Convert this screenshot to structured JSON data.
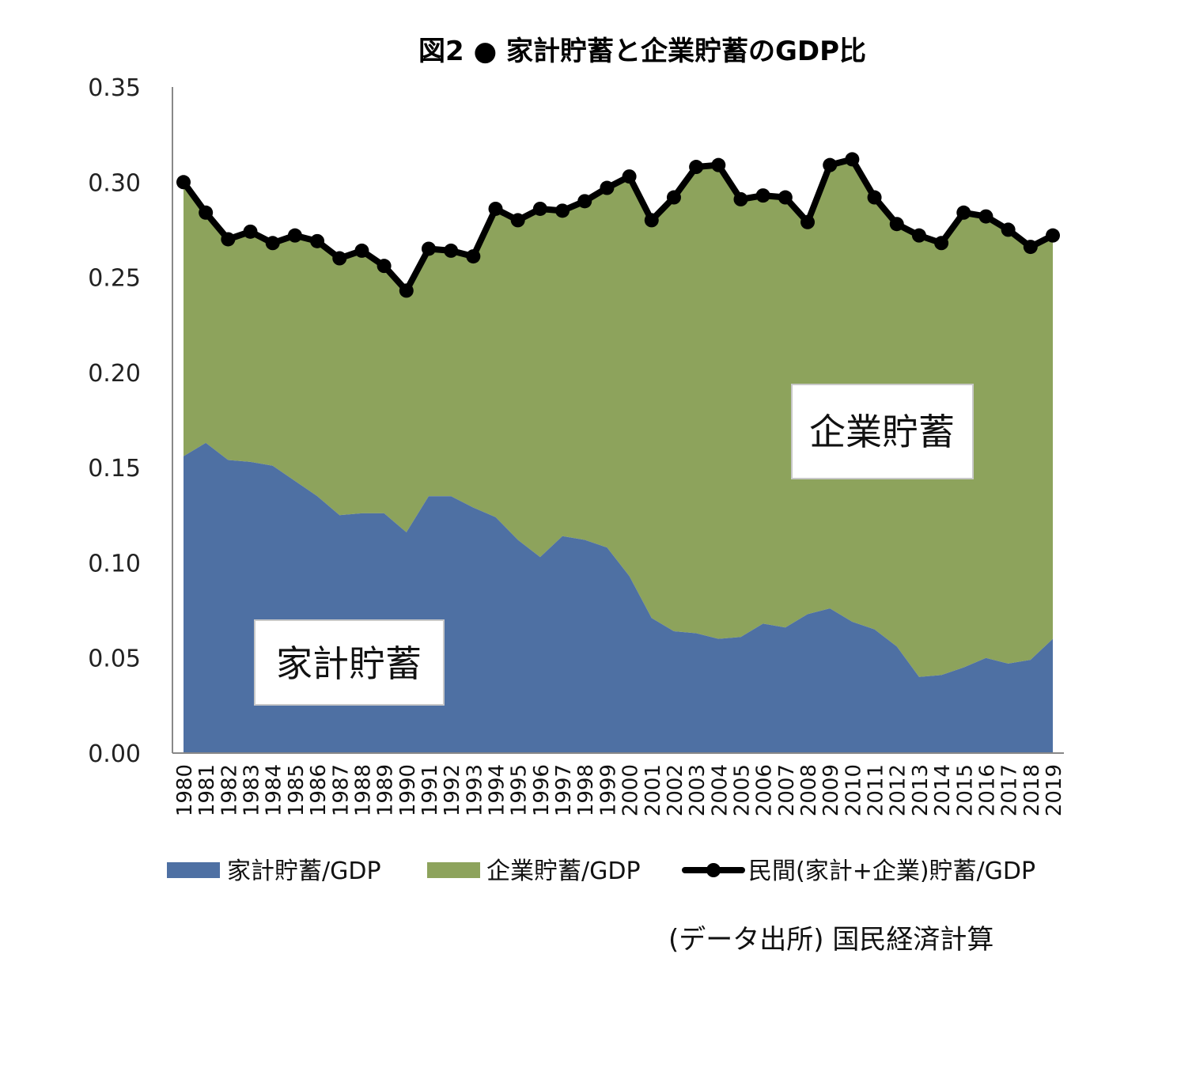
{
  "chart_data": {
    "type": "area",
    "title": "図2 ● 家計貯蓄と企業貯蓄のGDP比",
    "ylim": [
      0,
      0.35
    ],
    "yticks": [
      "0.00",
      "0.05",
      "0.10",
      "0.15",
      "0.20",
      "0.25",
      "0.30",
      "0.35"
    ],
    "grid": false,
    "legend_position": "bottom",
    "categories": [
      "1980",
      "1981",
      "1982",
      "1983",
      "1984",
      "1985",
      "1986",
      "1987",
      "1988",
      "1989",
      "1990",
      "1991",
      "1992",
      "1993",
      "1994",
      "1995",
      "1996",
      "1997",
      "1998",
      "1999",
      "2000",
      "2001",
      "2002",
      "2003",
      "2004",
      "2005",
      "2006",
      "2007",
      "2008",
      "2009",
      "2010",
      "2011",
      "2012",
      "2013",
      "2014",
      "2015",
      "2016",
      "2017",
      "2018",
      "2019"
    ],
    "series": [
      {
        "name": "家計貯蓄/GDP",
        "type": "stacked-area",
        "color": "#4e70a3",
        "values": [
          0.156,
          0.163,
          0.154,
          0.153,
          0.151,
          0.143,
          0.135,
          0.125,
          0.126,
          0.126,
          0.116,
          0.135,
          0.135,
          0.129,
          0.124,
          0.112,
          0.103,
          0.114,
          0.112,
          0.108,
          0.093,
          0.071,
          0.064,
          0.063,
          0.06,
          0.061,
          0.068,
          0.066,
          0.073,
          0.076,
          0.069,
          0.065,
          0.056,
          0.04,
          0.041,
          0.045,
          0.05,
          0.047,
          0.049,
          0.06
        ]
      },
      {
        "name": "企業貯蓄/GDP",
        "type": "stacked-area",
        "color": "#8da35c",
        "values": [
          0.144,
          0.121,
          0.116,
          0.121,
          0.117,
          0.129,
          0.134,
          0.135,
          0.138,
          0.13,
          0.127,
          0.13,
          0.129,
          0.132,
          0.162,
          0.168,
          0.183,
          0.171,
          0.178,
          0.189,
          0.21,
          0.209,
          0.228,
          0.245,
          0.249,
          0.23,
          0.225,
          0.226,
          0.206,
          0.233,
          0.243,
          0.227,
          0.222,
          0.232,
          0.227,
          0.239,
          0.232,
          0.228,
          0.217,
          0.212
        ]
      },
      {
        "name": "民間(家計+企業)貯蓄/GDP",
        "type": "line",
        "color": "#000000",
        "values": [
          0.3,
          0.284,
          0.27,
          0.274,
          0.268,
          0.272,
          0.269,
          0.26,
          0.264,
          0.256,
          0.243,
          0.265,
          0.264,
          0.261,
          0.286,
          0.28,
          0.286,
          0.285,
          0.29,
          0.297,
          0.303,
          0.28,
          0.292,
          0.308,
          0.309,
          0.291,
          0.293,
          0.292,
          0.279,
          0.309,
          0.312,
          0.292,
          0.278,
          0.272,
          0.268,
          0.284,
          0.282,
          0.275,
          0.266,
          0.272
        ]
      }
    ],
    "annotations": [
      {
        "text": "企業貯蓄",
        "series": "企業貯蓄/GDP"
      },
      {
        "text": "家計貯蓄",
        "series": "家計貯蓄/GDP"
      }
    ],
    "source": "(データ出所)  国民経済計算"
  }
}
